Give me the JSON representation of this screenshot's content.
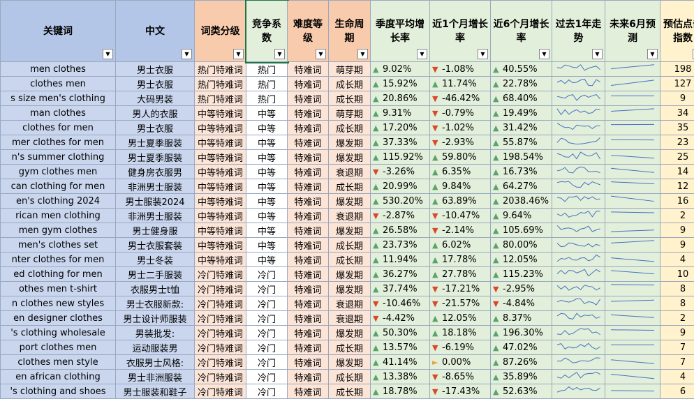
{
  "header": [
    "关键词",
    "中文",
    "词类分级",
    "竞争系数",
    "难度等级",
    "生命周期",
    "季度平均增长率",
    "近1个月增长率",
    "近6个月增长率",
    "过去1年走势",
    "未来6月预测",
    "预估点击指数"
  ],
  "rows": [
    [
      "men clothes",
      "男士衣服",
      "热门特难词",
      "热门",
      "特难词",
      "萌芽期",
      "9.02%",
      "-1.08%",
      "40.55%",
      198
    ],
    [
      "clothes men",
      "男士衣服",
      "热门特难词",
      "热门",
      "特难词",
      "成长期",
      "15.92%",
      "11.74%",
      "22.78%",
      127
    ],
    [
      "s size men's clothing",
      "大码男装",
      "热门特难词",
      "热门",
      "特难词",
      "成长期",
      "20.86%",
      "-46.42%",
      "68.40%",
      9
    ],
    [
      "man clothes",
      "男人的衣服",
      "中等特难词",
      "中等",
      "特难词",
      "萌芽期",
      "9.31%",
      "-0.79%",
      "19.49%",
      34
    ],
    [
      "clothes for men",
      "男士衣服",
      "中等特难词",
      "中等",
      "特难词",
      "成长期",
      "17.20%",
      "-1.02%",
      "31.42%",
      35
    ],
    [
      "mer clothes for men",
      "男士夏季服装",
      "中等特难词",
      "中等",
      "特难词",
      "爆发期",
      "37.33%",
      "-2.93%",
      "55.87%",
      23
    ],
    [
      "n's summer clothing",
      "男士夏季服装",
      "中等特难词",
      "中等",
      "特难词",
      "爆发期",
      "115.92%",
      "59.80%",
      "198.54%",
      25
    ],
    [
      "gym clothes men",
      "健身房衣服男",
      "中等特难词",
      "中等",
      "特难词",
      "衰退期",
      "-3.26%",
      "6.35%",
      "16.73%",
      14
    ],
    [
      "can clothing for men",
      "非洲男士服装",
      "中等特难词",
      "中等",
      "特难词",
      "成长期",
      "20.99%",
      "9.84%",
      "64.27%",
      12
    ],
    [
      "en's clothing 2024",
      "男士服装2024",
      "中等特难词",
      "中等",
      "特难词",
      "爆发期",
      "530.20%",
      "63.89%",
      "2038.46%",
      16
    ],
    [
      "rican men clothing",
      "非洲男士服装",
      "中等特难词",
      "中等",
      "特难词",
      "衰退期",
      "-2.87%",
      "-10.47%",
      "9.64%",
      2
    ],
    [
      "men gym clothes",
      "男士健身服",
      "中等特难词",
      "中等",
      "特难词",
      "爆发期",
      "26.58%",
      "-2.14%",
      "105.69%",
      9
    ],
    [
      "men's clothes set",
      "男士衣服套装",
      "中等特难词",
      "中等",
      "特难词",
      "成长期",
      "23.73%",
      "6.02%",
      "80.00%",
      9
    ],
    [
      "nter clothes for men",
      "男士冬装",
      "中等特难词",
      "中等",
      "特难词",
      "成长期",
      "11.94%",
      "17.78%",
      "12.05%",
      4
    ],
    [
      "ed clothing for men",
      "男士二手服装",
      "冷门特难词",
      "冷门",
      "特难词",
      "爆发期",
      "36.27%",
      "27.78%",
      "115.23%",
      10
    ],
    [
      "othes men t-shirt",
      "衣服男士t恤",
      "冷门特难词",
      "冷门",
      "特难词",
      "爆发期",
      "37.74%",
      "-17.21%",
      "-2.95%",
      8
    ],
    [
      "n clothes new styles",
      "男士衣服新款:",
      "冷门特难词",
      "冷门",
      "特难词",
      "衰退期",
      "-10.46%",
      "-21.57%",
      "-4.84%",
      8
    ],
    [
      "en designer clothes",
      "男士设计师服装",
      "冷门特难词",
      "冷门",
      "特难词",
      "衰退期",
      "-4.42%",
      "12.05%",
      "8.37%",
      2
    ],
    [
      "'s clothing wholesale",
      "男装批发:",
      "冷门特难词",
      "冷门",
      "特难词",
      "爆发期",
      "50.30%",
      "18.18%",
      "196.30%",
      9
    ],
    [
      "port clothes men",
      "运动服装男",
      "冷门特难词",
      "冷门",
      "特难词",
      "成长期",
      "13.57%",
      "-6.19%",
      "47.02%",
      7
    ],
    [
      "clothes men style",
      "衣服男士风格:",
      "冷门特难词",
      "冷门",
      "特难词",
      "爆发期",
      "41.14%",
      "0.00%",
      "87.26%",
      7
    ],
    [
      "en african clothing",
      "男士非洲服装",
      "冷门特难词",
      "冷门",
      "特难词",
      "成长期",
      "13.38%",
      "-8.65%",
      "35.89%",
      4
    ],
    [
      "'s clothing and shoes",
      "男士服装和鞋子",
      "冷门特难词",
      "冷门",
      "特难词",
      "成长期",
      "18.78%",
      "-17.43%",
      "52.63%",
      6
    ]
  ]
}
